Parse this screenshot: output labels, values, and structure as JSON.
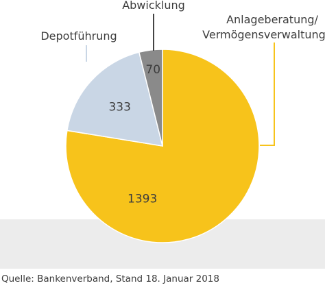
{
  "chart_data": {
    "type": "pie",
    "slices": [
      {
        "label": "Anlageberatung/\nVermögensverwaltung",
        "value": 1393,
        "value_label": "1393",
        "color": "#f7c31b"
      },
      {
        "label": "Depotführung",
        "value": 333,
        "value_label": "333",
        "color": "#c9d6e5"
      },
      {
        "label": "Abwicklung",
        "value": 70,
        "value_label": "70",
        "color": "#8a8a8a"
      }
    ],
    "start": "12 o'clock",
    "direction": "clockwise",
    "leader_line_colors": [
      "#f7c31b",
      "#c9d6e5",
      "#444444"
    ],
    "background_band_color": "#ececec"
  },
  "source": "Quelle: Bankenverband, Stand 18. Januar 2018"
}
